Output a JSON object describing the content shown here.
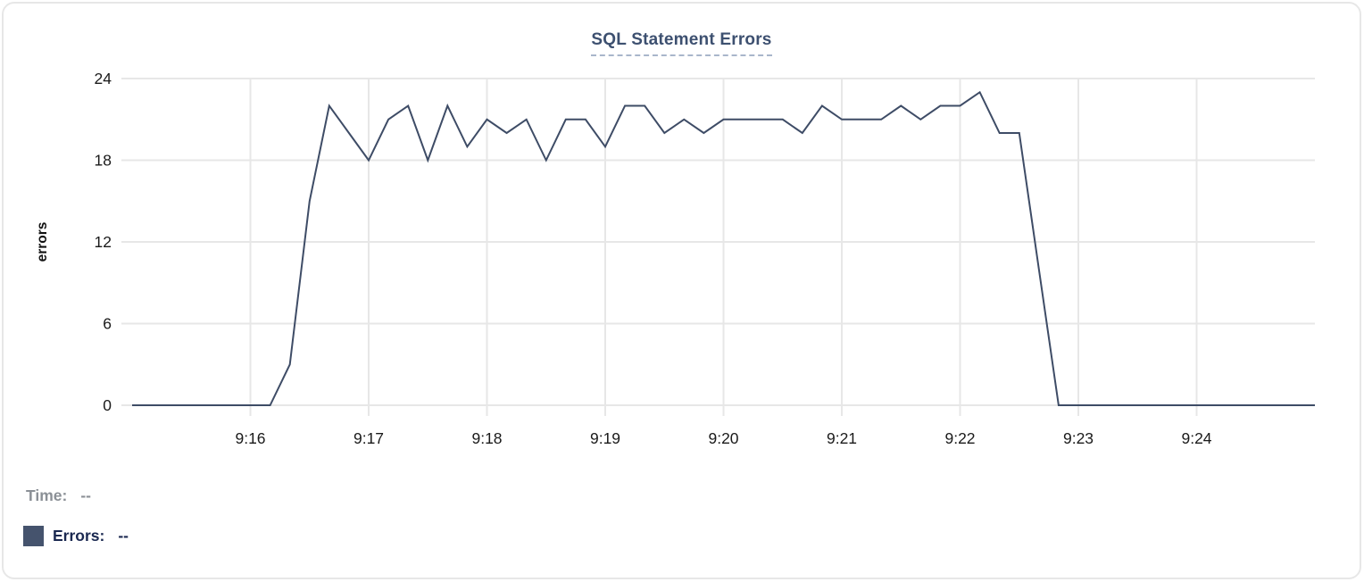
{
  "chart": {
    "title": "SQL Statement Errors",
    "y_axis_label": "errors",
    "colors": {
      "line": "#3e4c66",
      "grid": "#e7e7e7",
      "tick_text": "#1a1a1a",
      "title": "#3d5070",
      "title_underline": "#a9b6cb",
      "legend_time_text": "#8b9096",
      "legend_errors_text": "#1b2951",
      "swatch": "#45536d",
      "card_border": "#e7e7e7"
    }
  },
  "tooltip": {
    "time_label": "Time:",
    "time_value": "--",
    "errors_label": "Errors:",
    "errors_value": "--"
  },
  "chart_data": {
    "type": "line",
    "title": "SQL Statement Errors",
    "xlabel": "",
    "ylabel": "errors",
    "ylim": [
      0,
      24
    ],
    "yticks": [
      0,
      6,
      12,
      18,
      24
    ],
    "x_tick_labels": [
      "9:16",
      "9:17",
      "9:18",
      "9:19",
      "9:20",
      "9:21",
      "9:22",
      "9:23",
      "9:24"
    ],
    "x_start": "9:15:00",
    "x_end": "9:25:00",
    "grid": true,
    "legend_position": "bottom-left",
    "series": [
      {
        "name": "Errors",
        "color": "#3e4c66",
        "x": [
          "9:15:00",
          "9:15:10",
          "9:15:20",
          "9:15:30",
          "9:15:40",
          "9:15:50",
          "9:16:00",
          "9:16:10",
          "9:16:20",
          "9:16:30",
          "9:16:40",
          "9:16:50",
          "9:17:00",
          "9:17:10",
          "9:17:20",
          "9:17:30",
          "9:17:40",
          "9:17:50",
          "9:18:00",
          "9:18:10",
          "9:18:20",
          "9:18:30",
          "9:18:40",
          "9:18:50",
          "9:19:00",
          "9:19:10",
          "9:19:20",
          "9:19:30",
          "9:19:40",
          "9:19:50",
          "9:20:00",
          "9:20:10",
          "9:20:20",
          "9:20:30",
          "9:20:40",
          "9:20:50",
          "9:21:00",
          "9:21:10",
          "9:21:20",
          "9:21:30",
          "9:21:40",
          "9:21:50",
          "9:22:00",
          "9:22:10",
          "9:22:20",
          "9:22:30",
          "9:22:40",
          "9:22:50",
          "9:23:00",
          "9:23:10",
          "9:23:20",
          "9:23:30",
          "9:23:40",
          "9:23:50",
          "9:24:00",
          "9:24:10",
          "9:24:20",
          "9:24:30",
          "9:24:40",
          "9:24:50",
          "9:25:00"
        ],
        "values": [
          0,
          0,
          0,
          0,
          0,
          0,
          0,
          0,
          3,
          15,
          22,
          20,
          18,
          21,
          22,
          18,
          22,
          19,
          21,
          20,
          21,
          18,
          21,
          21,
          19,
          22,
          22,
          20,
          21,
          20,
          21,
          21,
          21,
          21,
          20,
          22,
          21,
          21,
          21,
          22,
          21,
          22,
          22,
          23,
          20,
          20,
          10,
          0,
          0,
          0,
          0,
          0,
          0,
          0,
          0,
          0,
          0,
          0,
          0,
          0,
          0
        ]
      }
    ]
  }
}
